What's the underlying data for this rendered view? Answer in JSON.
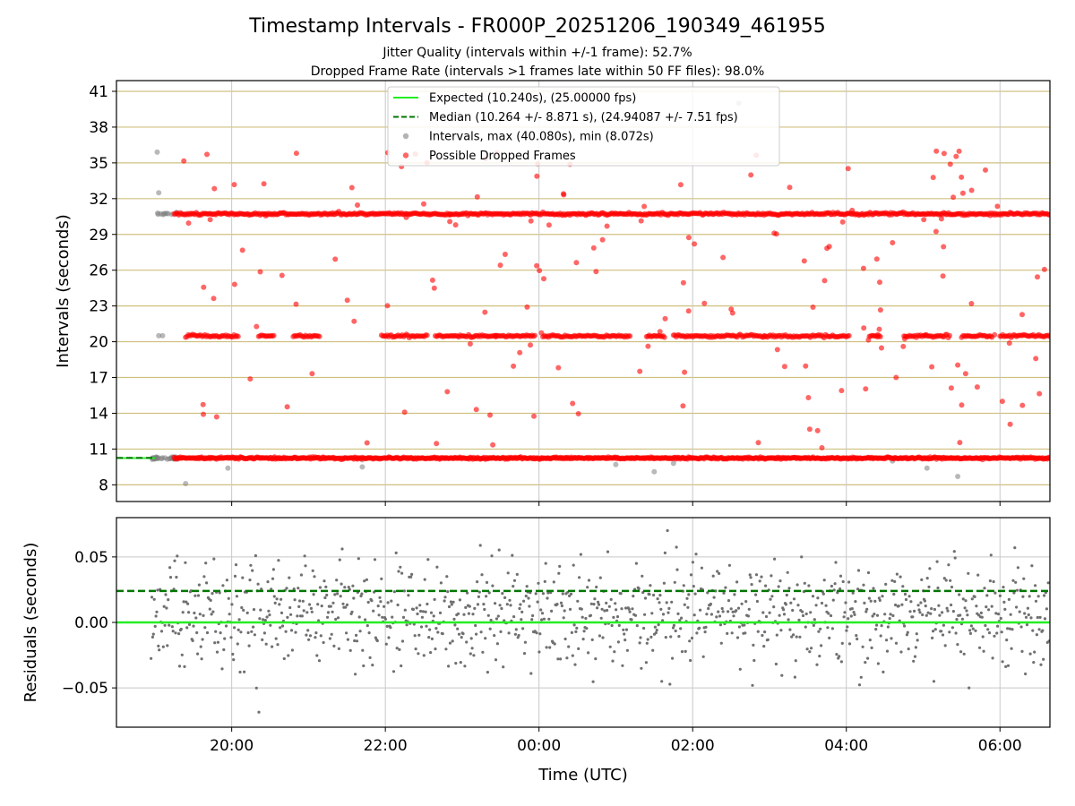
{
  "chart_data": [
    {
      "type": "scatter",
      "title": "Timestamp Intervals - FR000P_20251206_190349_461955",
      "subtitle_1": "Jitter Quality (intervals within +/-1 frame): 52.7%",
      "subtitle_2": "Dropped Frame Rate (intervals >1 frames late within 50 FF files): 98.0%",
      "ylabel": "Intervals (seconds)",
      "xlabel": "",
      "xlim_hours": [
        -5.5,
        6.65
      ],
      "ylim": [
        6.6,
        41.9
      ],
      "y_ticks": [
        8,
        11,
        14,
        17,
        20,
        23,
        26,
        29,
        32,
        35,
        38,
        41
      ],
      "y_tick_labels": [
        "8",
        "11",
        "14",
        "17",
        "20",
        "23",
        "26",
        "29",
        "32",
        "35",
        "38",
        "41"
      ],
      "grid_color": "#d0c080",
      "expected_interval": 10.24,
      "median_interval": 10.264,
      "interval_max": 40.08,
      "interval_min": 8.072,
      "legend": {
        "position": "top-center",
        "entries": [
          {
            "label": "Expected (10.240s), (25.00000 fps)",
            "style": "solid-line",
            "color": "#22ee22"
          },
          {
            "label": "Median (10.264 +/- 8.871 s), (24.94087 +/- 7.51 fps)",
            "style": "dashed-line",
            "color": "#007700"
          },
          {
            "label": "Intervals, max (40.080s), min (8.072s)",
            "style": "dot",
            "color": "#808080"
          },
          {
            "label": "Possible Dropped Frames",
            "style": "dot",
            "color": "#ff0000"
          }
        ]
      },
      "series": [
        {
          "name": "Intervals",
          "color": "#808080",
          "band_levels": [
            10.24,
            20.48,
            30.72
          ],
          "start_hour": -5.05,
          "end_hour": 6.65
        },
        {
          "name": "Possible Dropped Frames",
          "color": "#ff0000",
          "band_levels": [
            10.24,
            20.48,
            30.72
          ],
          "start_hour": -4.75,
          "end_hour": 6.65
        }
      ]
    },
    {
      "type": "scatter",
      "ylabel": "Residuals (seconds)",
      "xlabel": "Time (UTC)",
      "xlim_hours": [
        -5.5,
        6.65
      ],
      "ylim": [
        -0.08,
        0.08
      ],
      "y_ticks": [
        -0.05,
        0.0,
        0.05
      ],
      "y_tick_labels": [
        "−0.05",
        "0.00",
        "0.05"
      ],
      "x_ticks_hours": [
        -4,
        -2,
        0,
        2,
        4,
        6
      ],
      "x_tick_labels": [
        "20:00",
        "22:00",
        "00:00",
        "02:00",
        "04:00",
        "06:00"
      ],
      "expected_residual": 0.0,
      "median_residual": 0.024,
      "point_color": "#707070",
      "point_count": 1100,
      "spread_std": 0.024
    }
  ]
}
